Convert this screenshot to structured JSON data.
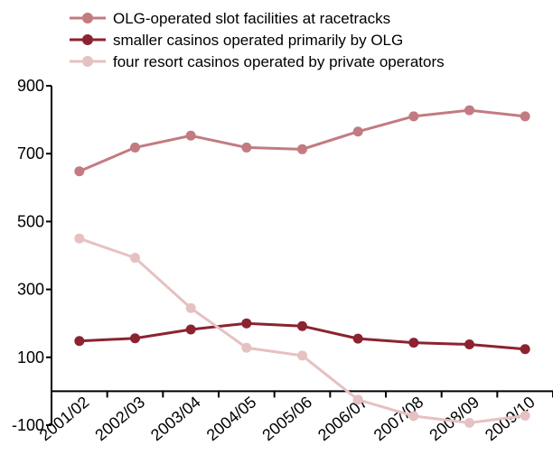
{
  "chart_data": {
    "type": "line",
    "categories": [
      "2001/02",
      "2002/03",
      "2003/04",
      "2004/05",
      "2005/06",
      "2006/07",
      "2007/08",
      "2008/09",
      "2009/10"
    ],
    "series": [
      {
        "name": "OLG-operated slot facilities at racetracks",
        "color": "#c27b80",
        "values": [
          648,
          718,
          753,
          718,
          713,
          765,
          810,
          828,
          810
        ]
      },
      {
        "name": "smaller casinos operated primarily by OLG",
        "color": "#8b2331",
        "values": [
          148,
          156,
          182,
          200,
          192,
          155,
          143,
          138,
          124
        ]
      },
      {
        "name": "four resort casinos operated by private operators",
        "color": "#e6c1c2",
        "values": [
          450,
          393,
          245,
          128,
          105,
          -25,
          -73,
          -93,
          -72
        ]
      }
    ],
    "ylim": [
      -100,
      900
    ],
    "yticks": [
      900,
      700,
      500,
      300,
      100,
      -100
    ],
    "legend": "top-left"
  }
}
